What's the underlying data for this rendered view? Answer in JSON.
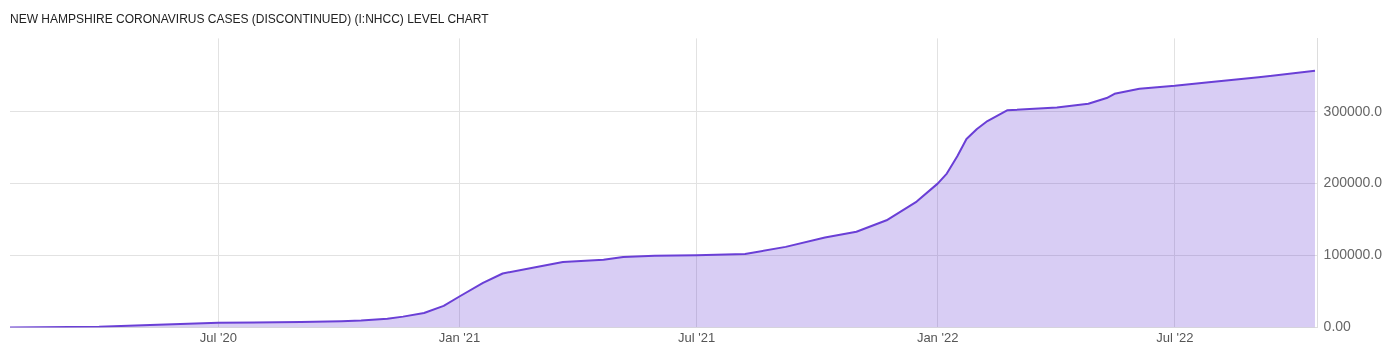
{
  "chart_data": {
    "type": "area",
    "title": "NEW HAMPSHIRE CORONAVIRUS CASES (DISCONTINUED) (I:NHCC) LEVEL CHART",
    "x": [
      "2020-01-24",
      "2020-04-01",
      "2020-05-10",
      "2020-07-01",
      "2020-09-02",
      "2020-10-03",
      "2020-10-18",
      "2020-11-07",
      "2020-11-19",
      "2020-12-05",
      "2020-12-20",
      "2021-01-01",
      "2021-01-19",
      "2021-02-03",
      "2021-02-26",
      "2021-03-21",
      "2021-04-21",
      "2021-05-06",
      "2021-05-30",
      "2021-07-01",
      "2021-08-07",
      "2021-09-07",
      "2021-10-07",
      "2021-10-31",
      "2021-11-23",
      "2021-12-16",
      "2022-01-01",
      "2022-01-08",
      "2022-01-16",
      "2022-01-23",
      "2022-01-31",
      "2022-02-08",
      "2022-02-23",
      "2022-04-02",
      "2022-04-26",
      "2022-05-10",
      "2022-05-16",
      "2022-06-04",
      "2022-07-01",
      "2022-07-27",
      "2022-09-03",
      "2022-10-16"
    ],
    "series": [
      {
        "color": "#6a3fd6",
        "values": [
          0,
          1000,
          3500,
          6500,
          7500,
          8500,
          9500,
          12000,
          15000,
          20000,
          30000,
          43000,
          62000,
          75000,
          83000,
          91000,
          94000,
          98000,
          99500,
          100500,
          102000,
          112000,
          125000,
          133000,
          149000,
          175000,
          200000,
          214000,
          238000,
          262000,
          276000,
          287000,
          302000,
          306000,
          311000,
          319000,
          325000,
          332000,
          336000,
          341000,
          348000,
          357000
        ]
      }
    ],
    "xlim": [
      "2020-01-24",
      "2022-10-18"
    ],
    "xticks": [
      {
        "value": "2020-07-01",
        "label": "Jul '20"
      },
      {
        "value": "2021-01-01",
        "label": "Jan '21"
      },
      {
        "value": "2021-07-01",
        "label": "Jul '21"
      },
      {
        "value": "2022-01-01",
        "label": "Jan '22"
      },
      {
        "value": "2022-07-01",
        "label": "Jul '22"
      }
    ],
    "ylim": [
      0,
      402000
    ],
    "yticks": [
      {
        "value": 0,
        "label": "0.00"
      },
      {
        "value": 100000,
        "label": "100000.0"
      },
      {
        "value": 200000,
        "label": "200000.0"
      },
      {
        "value": 300000,
        "label": "300000.0"
      }
    ],
    "grid": true,
    "legend": false
  }
}
